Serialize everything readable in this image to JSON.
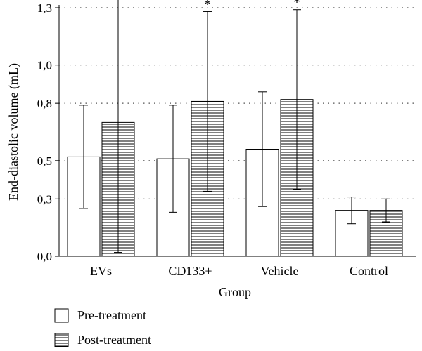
{
  "chart_data": {
    "type": "bar",
    "xlabel": "Group",
    "ylabel": "End-diastolic volume (mL)",
    "ylim": [
      0,
      1.3
    ],
    "yticks": [
      0,
      0.3,
      0.5,
      0.8,
      1.0,
      1.3
    ],
    "ytick_labels": [
      "0,0",
      "0,3",
      "0,5",
      "0,8",
      "1,0",
      "1,3"
    ],
    "grid": "horizontal-dotted",
    "legend_position": "bottom-left",
    "categories": [
      "EVs",
      "CD133+",
      "Vehicle",
      "Control"
    ],
    "series": [
      {
        "name": "Pre-treatment",
        "fill": "open",
        "values": [
          0.52,
          0.51,
          0.56,
          0.24
        ],
        "error": [
          0.27,
          0.28,
          0.3,
          0.07
        ]
      },
      {
        "name": "Post-treatment",
        "fill": "horizontal-hatch",
        "values": [
          0.7,
          0.81,
          0.82,
          0.24
        ],
        "error": [
          0.68,
          0.47,
          0.47,
          0.06
        ]
      }
    ],
    "annotations": [
      {
        "category": "CD133+",
        "series": "Post-treatment",
        "text": "*"
      },
      {
        "category": "Vehicle",
        "series": "Post-treatment",
        "text": "*"
      }
    ]
  },
  "colors": {
    "axis": "#000000",
    "bar_stroke": "#000000",
    "bar_fill": "#ffffff",
    "hatch": "#000000",
    "grid": "#555555"
  }
}
